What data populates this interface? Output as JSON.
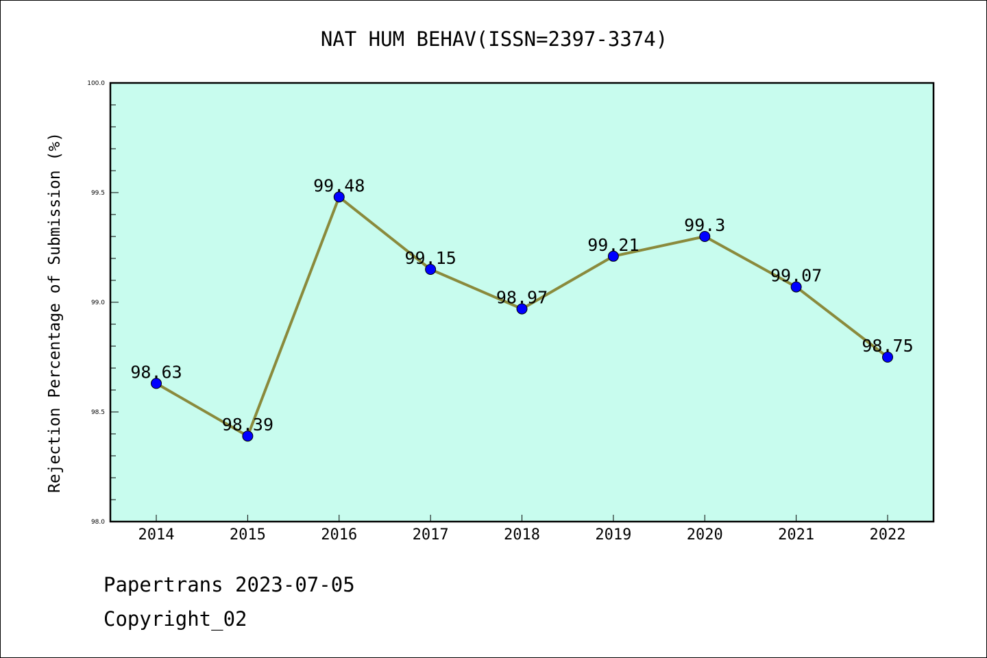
{
  "chart_data": {
    "type": "line",
    "title": "NAT HUM BEHAV(ISSN=2397-3374)",
    "xlabel": "",
    "ylabel": "Rejection Percentage of Submission (%)",
    "categories": [
      "2014",
      "2015",
      "2016",
      "2017",
      "2018",
      "2019",
      "2020",
      "2021",
      "2022"
    ],
    "series": [
      {
        "values": [
          98.63,
          98.39,
          99.48,
          99.15,
          98.97,
          99.21,
          99.3,
          99.07,
          98.75
        ]
      }
    ],
    "data_labels": [
      "98.63",
      "98.39",
      "99.48",
      "99.15",
      "98.97",
      "99.21",
      "99.3",
      "99.07",
      "98.75"
    ],
    "ylim": [
      98.0,
      100.0
    ],
    "yticks": [
      98.0,
      98.5,
      99.0,
      99.5,
      100.0
    ],
    "ytick_labels": [
      "98.0",
      "98.5",
      "99.0",
      "99.5",
      "100.0"
    ],
    "grid": false,
    "legend": "none",
    "colors": {
      "plot_background": "#c8fcee",
      "line": "#8a8a3c",
      "marker": "#0000ff"
    }
  },
  "footer": {
    "line1": "Papertrans 2023-07-05",
    "line2": "Copyright_02"
  }
}
